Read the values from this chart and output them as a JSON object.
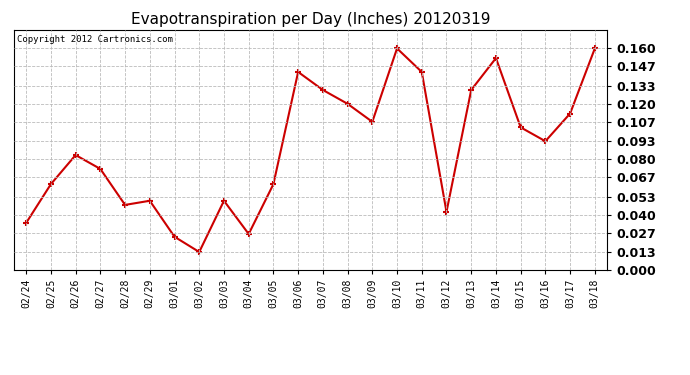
{
  "title": "Evapotranspiration per Day (Inches) 20120319",
  "copyright_text": "Copyright 2012 Cartronics.com",
  "x_labels": [
    "02/24",
    "02/25",
    "02/26",
    "02/27",
    "02/28",
    "02/29",
    "03/01",
    "03/02",
    "03/03",
    "03/04",
    "03/05",
    "03/06",
    "03/07",
    "03/08",
    "03/09",
    "03/10",
    "03/11",
    "03/12",
    "03/13",
    "03/14",
    "03/15",
    "03/16",
    "03/17",
    "03/18"
  ],
  "y_values": [
    0.034,
    0.062,
    0.083,
    0.073,
    0.047,
    0.05,
    0.024,
    0.013,
    0.05,
    0.026,
    0.062,
    0.143,
    0.13,
    0.12,
    0.107,
    0.16,
    0.143,
    0.042,
    0.13,
    0.153,
    0.103,
    0.093,
    0.113,
    0.16
  ],
  "line_color": "#cc0000",
  "marker_color": "#cc0000",
  "background_color": "#ffffff",
  "plot_bg_color": "#ffffff",
  "grid_color": "#bbbbbb",
  "ylim": [
    0.0,
    0.1733
  ],
  "yticks": [
    0.0,
    0.013,
    0.027,
    0.04,
    0.053,
    0.067,
    0.08,
    0.093,
    0.107,
    0.12,
    0.133,
    0.147,
    0.16
  ],
  "title_fontsize": 11,
  "copyright_fontsize": 6.5,
  "tick_fontsize": 9,
  "xtick_fontsize": 7,
  "marker_size": 5,
  "line_width": 1.5
}
